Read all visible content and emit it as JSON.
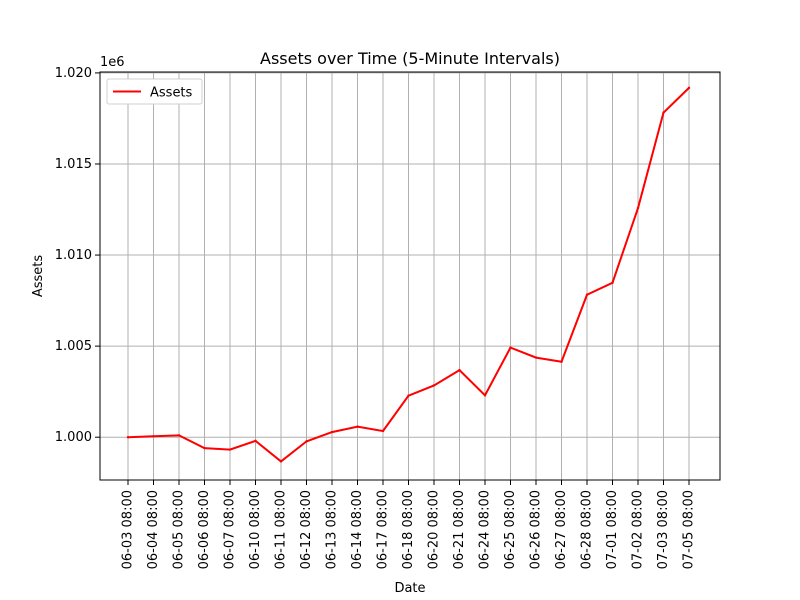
{
  "chart_data": {
    "type": "line",
    "title": "Assets over Time (5-Minute Intervals)",
    "xlabel": "Date",
    "ylabel": "Assets",
    "y_offset_label": "1e6",
    "categories": [
      "06-03 08:00",
      "06-04 08:00",
      "06-05 08:00",
      "06-06 08:00",
      "06-07 08:00",
      "06-10 08:00",
      "06-11 08:00",
      "06-12 08:00",
      "06-13 08:00",
      "06-14 08:00",
      "06-17 08:00",
      "06-18 08:00",
      "06-20 08:00",
      "06-21 08:00",
      "06-24 08:00",
      "06-25 08:00",
      "06-26 08:00",
      "06-27 08:00",
      "06-28 08:00",
      "07-01 08:00",
      "07-02 08:00",
      "07-03 08:00",
      "07-05 08:00"
    ],
    "series": [
      {
        "name": "Assets",
        "color": "#ff0000",
        "values": [
          1000000,
          1000050,
          1000100,
          999400,
          999320,
          999800,
          998670,
          999770,
          1000280,
          1000580,
          1000340,
          1002280,
          1002840,
          1003680,
          1002300,
          1004920,
          1004370,
          1004140,
          1007820,
          1008480,
          1012580,
          1017820,
          1019180
        ]
      }
    ],
    "ylim": [
      997650,
      1020050
    ],
    "yticks": [
      1000000,
      1005000,
      1010000,
      1015000,
      1020000
    ],
    "ytick_labels": [
      "1.000",
      "1.005",
      "1.010",
      "1.015",
      "1.020"
    ],
    "grid": true,
    "legend_position": "upper-left"
  }
}
